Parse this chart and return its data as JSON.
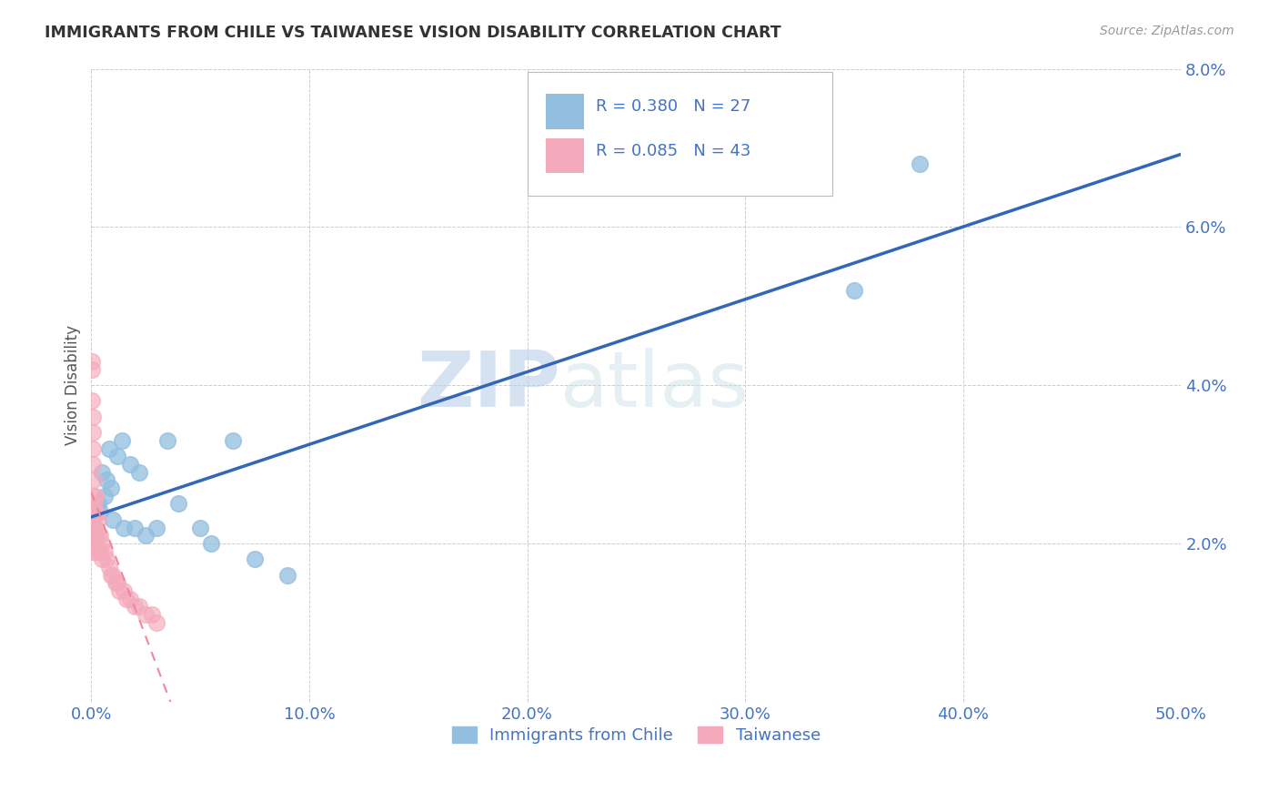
{
  "title": "IMMIGRANTS FROM CHILE VS TAIWANESE VISION DISABILITY CORRELATION CHART",
  "source": "Source: ZipAtlas.com",
  "tick_color": "#4472C4",
  "ylabel": "Vision Disability",
  "xlim": [
    0,
    0.5
  ],
  "ylim": [
    0,
    0.08
  ],
  "xticks": [
    0.0,
    0.1,
    0.2,
    0.3,
    0.4,
    0.5
  ],
  "yticks": [
    0.0,
    0.02,
    0.04,
    0.06,
    0.08
  ],
  "xtick_labels": [
    "0.0%",
    "10.0%",
    "20.0%",
    "30.0%",
    "40.0%",
    "50.0%"
  ],
  "ytick_labels": [
    "",
    "2.0%",
    "4.0%",
    "6.0%",
    "8.0%"
  ],
  "legend_label1": "Immigrants from Chile",
  "legend_label2": "Taiwanese",
  "R1": 0.38,
  "N1": 27,
  "R2": 0.085,
  "N2": 43,
  "color1": "#92BEE0",
  "color2": "#F4AABB",
  "trendline1_color": "#3366BB",
  "trendline2_color": "#EE8899",
  "watermark_zip": "ZIP",
  "watermark_atlas": "atlas",
  "chile_x": [
    0.001,
    0.002,
    0.003,
    0.004,
    0.005,
    0.006,
    0.007,
    0.008,
    0.009,
    0.01,
    0.012,
    0.014,
    0.015,
    0.018,
    0.02,
    0.022,
    0.025,
    0.03,
    0.035,
    0.04,
    0.05,
    0.055,
    0.065,
    0.075,
    0.09,
    0.35,
    0.38
  ],
  "chile_y": [
    0.022,
    0.021,
    0.025,
    0.024,
    0.029,
    0.026,
    0.028,
    0.032,
    0.027,
    0.023,
    0.031,
    0.033,
    0.022,
    0.03,
    0.022,
    0.029,
    0.021,
    0.022,
    0.033,
    0.025,
    0.022,
    0.02,
    0.033,
    0.018,
    0.016,
    0.052,
    0.068
  ],
  "taiwanese_x": [
    0.0002,
    0.0003,
    0.0004,
    0.0005,
    0.0006,
    0.0007,
    0.0008,
    0.001,
    0.001,
    0.001,
    0.001,
    0.001,
    0.001,
    0.001,
    0.001,
    0.001,
    0.002,
    0.002,
    0.002,
    0.002,
    0.003,
    0.003,
    0.003,
    0.004,
    0.004,
    0.005,
    0.005,
    0.006,
    0.007,
    0.008,
    0.009,
    0.01,
    0.011,
    0.012,
    0.013,
    0.015,
    0.016,
    0.018,
    0.02,
    0.022,
    0.025,
    0.028,
    0.03
  ],
  "taiwanese_y": [
    0.043,
    0.042,
    0.038,
    0.036,
    0.034,
    0.032,
    0.03,
    0.028,
    0.026,
    0.025,
    0.024,
    0.023,
    0.022,
    0.021,
    0.02,
    0.019,
    0.026,
    0.024,
    0.022,
    0.019,
    0.023,
    0.021,
    0.019,
    0.021,
    0.019,
    0.02,
    0.018,
    0.019,
    0.018,
    0.017,
    0.016,
    0.016,
    0.015,
    0.015,
    0.014,
    0.014,
    0.013,
    0.013,
    0.012,
    0.012,
    0.011,
    0.011,
    0.01
  ]
}
